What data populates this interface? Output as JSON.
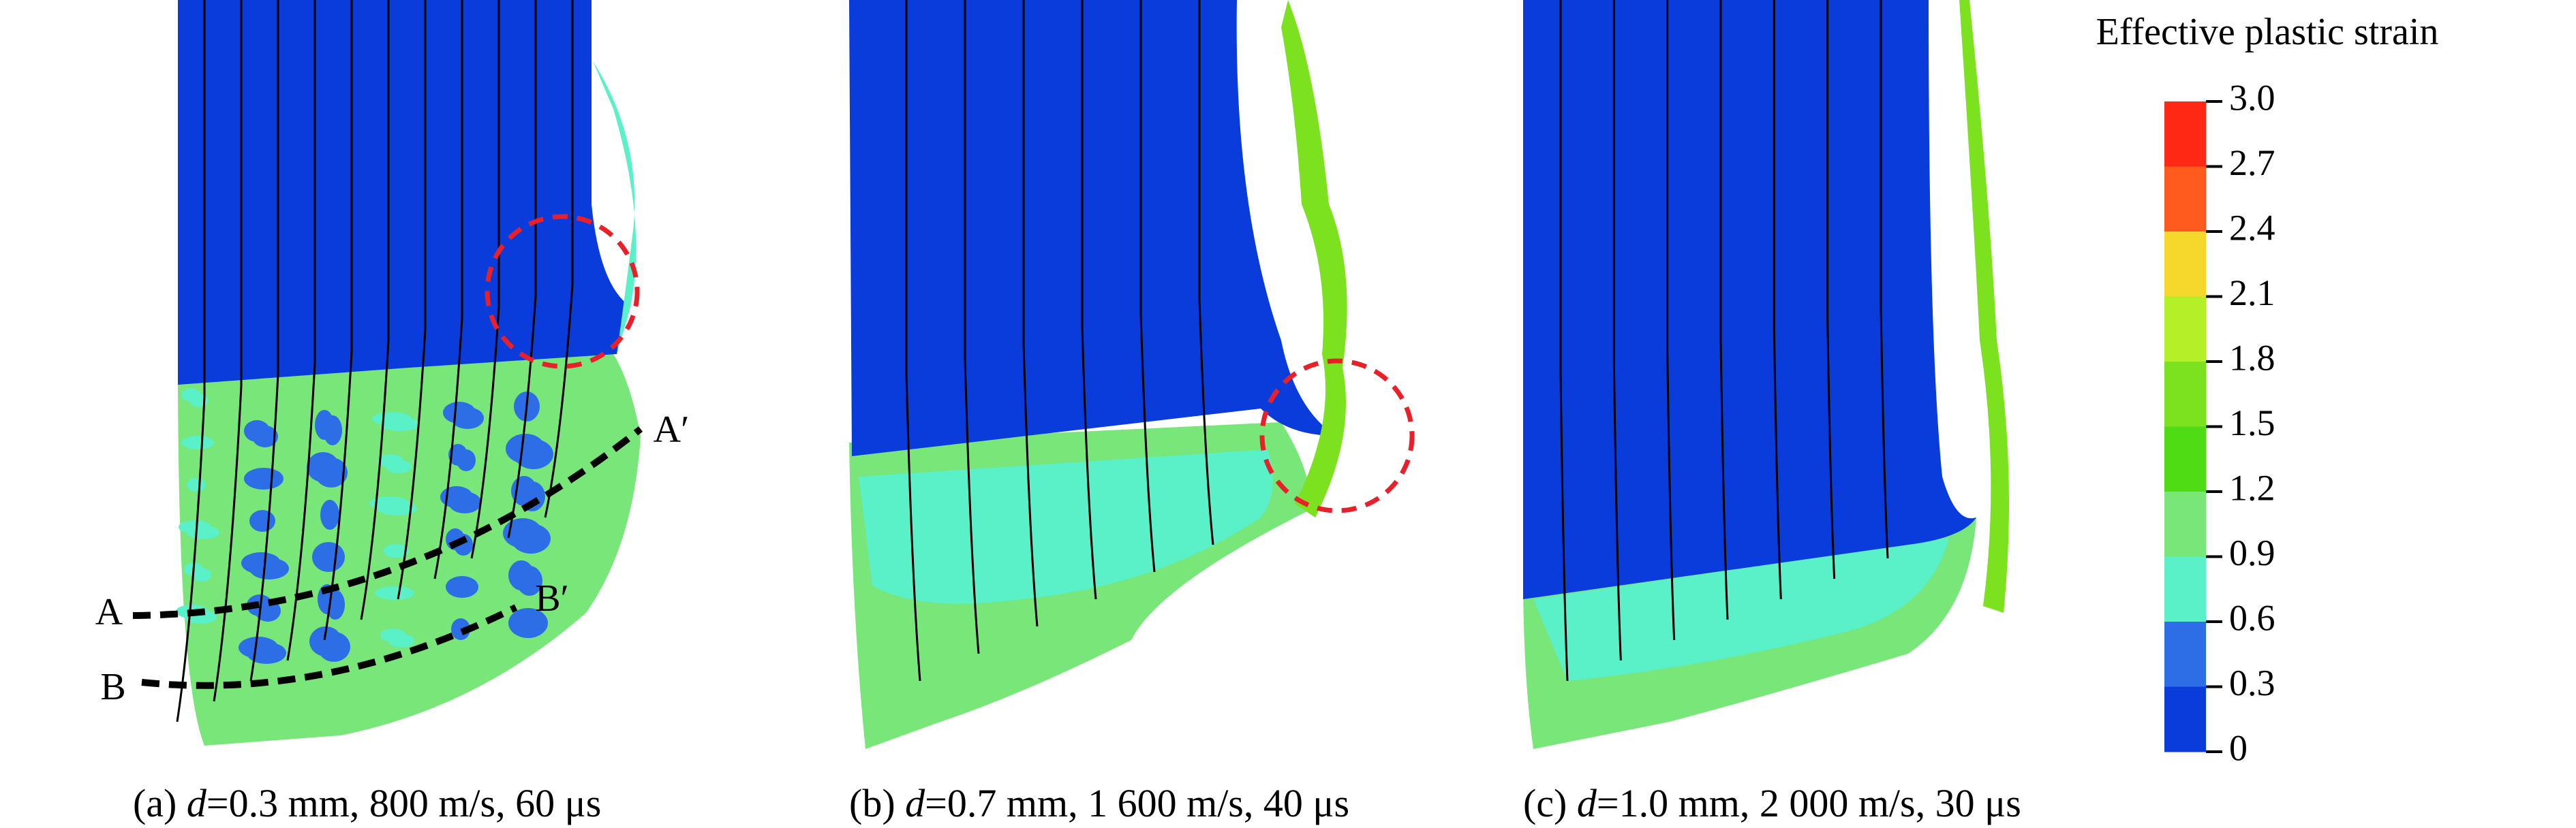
{
  "figure": {
    "colorbar": {
      "title": "Effective plastic strain",
      "ticks": [
        "3.0",
        "2.7",
        "2.4",
        "2.1",
        "1.8",
        "1.5",
        "1.2",
        "0.9",
        "0.6",
        "0.3",
        "0"
      ],
      "colors": [
        "#ff2814",
        "#ff5a1e",
        "#f5d62a",
        "#b4f028",
        "#7ce11e",
        "#50dc14",
        "#78e678",
        "#5af0c8",
        "#2d6ee6",
        "#0a3cdc"
      ]
    },
    "annotations": {
      "a": "A",
      "a_prime": "A′",
      "b": "B",
      "b_prime": "B′"
    },
    "panels": [
      {
        "label": "(a) ",
        "var": "d",
        "text": "=0.3 mm, 800 m/s, 60 μs"
      },
      {
        "label": "(b) ",
        "var": "d",
        "text": "=0.7 mm, 1 600 m/s, 40 μs"
      },
      {
        "label": "(c) ",
        "var": "d",
        "text": "=1.0 mm, 2 000 m/s, 30 μs"
      }
    ]
  }
}
